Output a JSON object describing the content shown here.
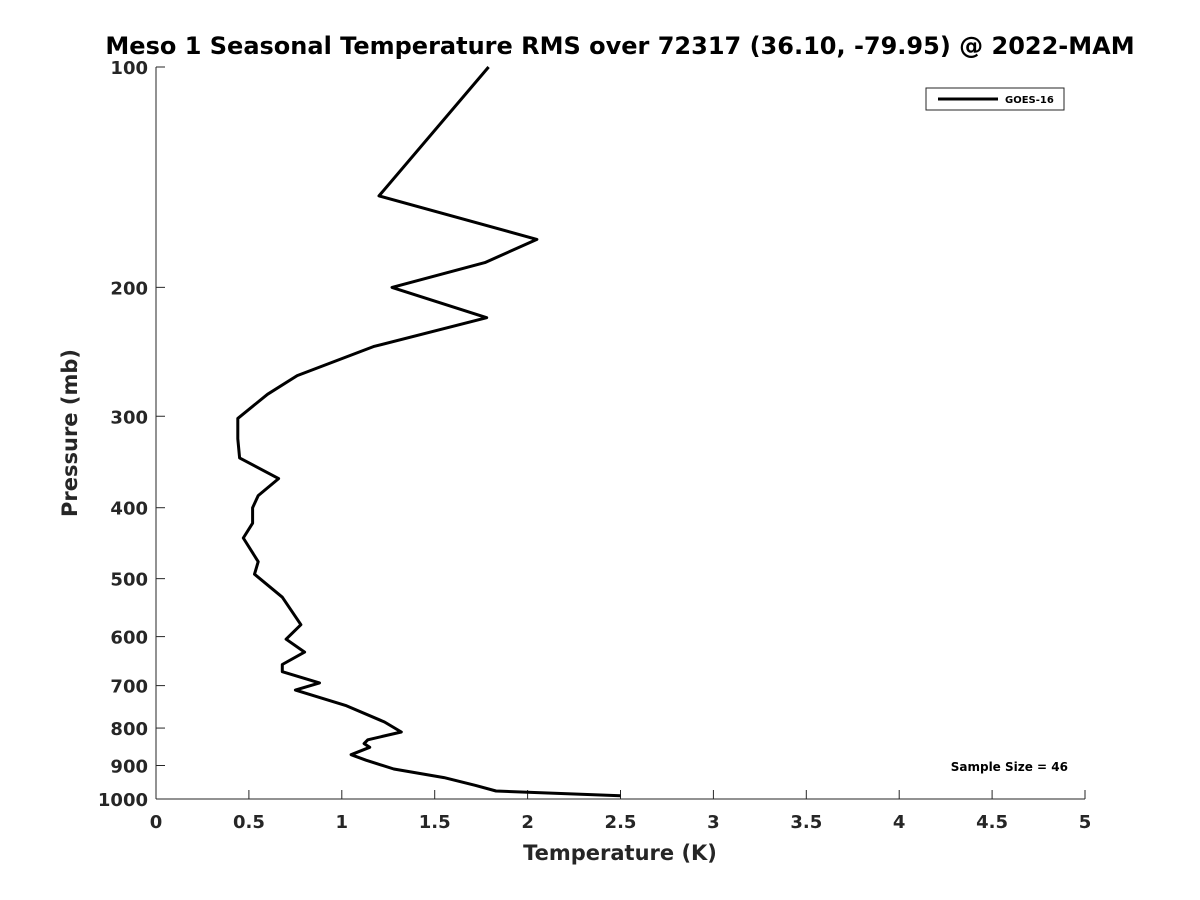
{
  "chart_data": {
    "type": "line",
    "title": "Meso 1 Seasonal Temperature RMS over 72317 (36.10, -79.95) @ 2022-MAM",
    "xlabel": "Temperature (K)",
    "ylabel": "Pressure (mb)",
    "xlim": [
      0,
      5
    ],
    "ylim": [
      1000,
      100
    ],
    "y_scale": "log",
    "x_ticks": [
      0,
      0.5,
      1,
      1.5,
      2,
      2.5,
      3,
      3.5,
      4,
      4.5,
      5
    ],
    "x_tick_labels": [
      "0",
      "0.5",
      "1",
      "1.5",
      "2",
      "2.5",
      "3",
      "3.5",
      "4",
      "4.5",
      "5"
    ],
    "y_ticks": [
      100,
      200,
      300,
      400,
      500,
      600,
      700,
      800,
      900,
      1000
    ],
    "y_tick_labels": [
      "100",
      "200",
      "300",
      "400",
      "500",
      "600",
      "700",
      "800",
      "900",
      "1000"
    ],
    "grid": false,
    "legend_position": "top-right",
    "series": [
      {
        "name": "GOES-16",
        "color": "#000000",
        "x": [
          1.79,
          1.2,
          2.05,
          1.77,
          1.27,
          1.78,
          1.17,
          0.76,
          0.6,
          0.44,
          0.44,
          0.45,
          0.66,
          0.55,
          0.52,
          0.52,
          0.47,
          0.55,
          0.53,
          0.68,
          0.78,
          0.7,
          0.8,
          0.68,
          0.68,
          0.88,
          0.75,
          1.02,
          1.23,
          1.32,
          1.14,
          1.12,
          1.15,
          1.05,
          1.13,
          1.28,
          1.55,
          1.72,
          1.83,
          2.5
        ],
        "y": [
          100,
          150,
          172,
          185,
          200,
          220,
          241,
          264,
          280,
          302,
          322,
          342,
          365,
          385,
          400,
          420,
          440,
          474,
          493,
          530,
          578,
          605,
          630,
          655,
          670,
          694,
          710,
          745,
          785,
          810,
          830,
          840,
          850,
          870,
          885,
          910,
          935,
          958,
          975,
          990
        ]
      }
    ],
    "annotations": [
      "Sample Size = 46"
    ]
  }
}
